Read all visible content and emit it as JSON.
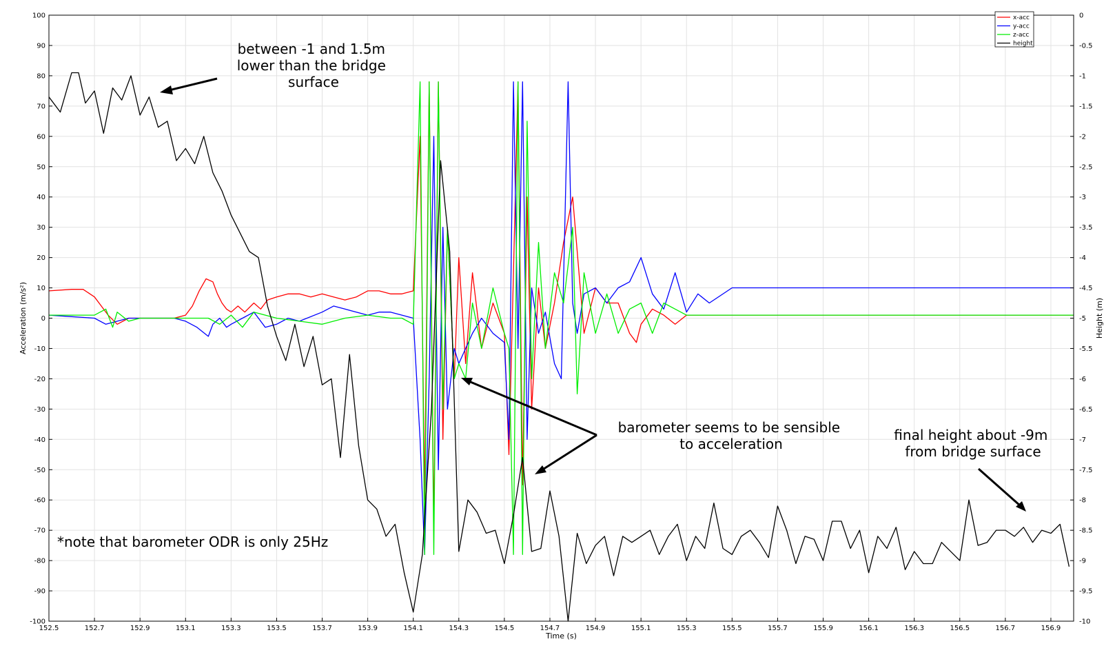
{
  "chart_data": {
    "type": "line",
    "title": "",
    "xlabel": "Time (s)",
    "ylabel_left": "Acceleration (m/s²)",
    "ylabel_right": "Height (m)",
    "xlim": [
      152.5,
      157.0
    ],
    "ylim_left": [
      -100,
      100
    ],
    "ylim_right": [
      -10,
      0
    ],
    "grid": true,
    "legend_position": "top-right",
    "x_ticks": [
      "152.5",
      "152.7",
      "152.9",
      "153.1",
      "153.3",
      "153.5",
      "153.7",
      "153.9",
      "154.1",
      "154.3",
      "154.5",
      "154.7",
      "154.9",
      "155.1",
      "155.3",
      "155.5",
      "155.7",
      "155.9",
      "156.1",
      "156.3",
      "156.5",
      "156.7",
      "156.9"
    ],
    "y_left_ticks": [
      "100",
      "90",
      "80",
      "70",
      "60",
      "50",
      "40",
      "30",
      "20",
      "10",
      "0",
      "-10",
      "-20",
      "-30",
      "-40",
      "-50",
      "-60",
      "-70",
      "-80",
      "-90",
      "-100"
    ],
    "y_right_ticks": [
      "0",
      "-0.5",
      "-1",
      "-1.5",
      "-2",
      "-2.5",
      "-3",
      "-3.5",
      "-4",
      "-4.5",
      "-5",
      "-5.5",
      "-6",
      "-6.5",
      "-7",
      "-7.5",
      "-8",
      "-8.5",
      "-9",
      "-9.5",
      "-10"
    ],
    "series": [
      {
        "name": "x-acc",
        "color": "#ff0000",
        "axis": "left",
        "x": [
          152.5,
          152.6,
          152.65,
          152.7,
          152.73,
          152.76,
          152.8,
          152.85,
          152.9,
          153.0,
          153.05,
          153.1,
          153.13,
          153.16,
          153.19,
          153.22,
          153.24,
          153.26,
          153.28,
          153.3,
          153.33,
          153.36,
          153.4,
          153.43,
          153.46,
          153.5,
          153.55,
          153.6,
          153.65,
          153.7,
          153.75,
          153.8,
          153.85,
          153.9,
          153.95,
          154.0,
          154.05,
          154.1,
          154.13,
          154.15,
          154.17,
          154.19,
          154.21,
          154.23,
          154.25,
          154.28,
          154.3,
          154.33,
          154.36,
          154.4,
          154.45,
          154.5,
          154.52,
          154.54,
          154.56,
          154.58,
          154.6,
          154.62,
          154.65,
          154.68,
          154.72,
          154.76,
          154.8,
          154.85,
          154.9,
          154.95,
          155.0,
          155.05,
          155.08,
          155.1,
          155.15,
          155.2,
          155.25,
          155.3,
          155.4,
          155.5,
          155.7,
          156.0,
          156.5,
          157.0
        ],
        "values": [
          9,
          9.5,
          9.5,
          7,
          4,
          1,
          -2,
          0,
          0,
          0,
          0,
          1,
          4,
          9,
          13,
          12,
          8,
          5,
          3,
          2,
          4,
          2,
          5,
          3,
          6,
          7,
          8,
          8,
          7,
          8,
          7,
          6,
          7,
          9,
          9,
          8,
          8,
          9,
          60,
          -60,
          78,
          -70,
          78,
          -40,
          30,
          -20,
          20,
          -15,
          15,
          -10,
          5,
          -5,
          -45,
          15,
          78,
          -55,
          40,
          -30,
          10,
          -10,
          5,
          25,
          40,
          -5,
          10,
          5,
          5,
          -5,
          -8,
          -2,
          3,
          1,
          -2,
          1,
          1,
          1,
          1,
          1,
          1,
          1
        ]
      },
      {
        "name": "y-acc",
        "color": "#0000ff",
        "axis": "left",
        "x": [
          152.5,
          152.6,
          152.7,
          152.75,
          152.8,
          152.85,
          152.9,
          153.0,
          153.05,
          153.1,
          153.15,
          153.2,
          153.22,
          153.25,
          153.28,
          153.3,
          153.35,
          153.4,
          153.45,
          153.5,
          153.55,
          153.6,
          153.7,
          153.75,
          153.8,
          153.9,
          153.95,
          154.0,
          154.05,
          154.1,
          154.13,
          154.15,
          154.17,
          154.19,
          154.21,
          154.23,
          154.25,
          154.28,
          154.3,
          154.33,
          154.36,
          154.4,
          154.45,
          154.5,
          154.52,
          154.54,
          154.56,
          154.58,
          154.6,
          154.62,
          154.65,
          154.68,
          154.72,
          154.75,
          154.78,
          154.8,
          154.82,
          154.85,
          154.9,
          154.95,
          155.0,
          155.05,
          155.1,
          155.15,
          155.2,
          155.25,
          155.3,
          155.35,
          155.4,
          155.5,
          155.6,
          155.7,
          156.0,
          156.5,
          157.0
        ],
        "values": [
          1,
          0.5,
          0,
          -2,
          -1,
          0,
          0,
          0,
          0,
          -1,
          -3,
          -6,
          -2,
          0,
          -3,
          -2,
          0,
          2,
          -3,
          -2,
          0,
          -1,
          2,
          4,
          3,
          1,
          2,
          2,
          1,
          0,
          -40,
          -78,
          -20,
          60,
          -50,
          30,
          -30,
          -10,
          -15,
          -10,
          -5,
          0,
          -5,
          -8,
          -40,
          78,
          -10,
          78,
          -40,
          10,
          -5,
          2,
          -15,
          -20,
          78,
          5,
          -5,
          8,
          10,
          5,
          10,
          12,
          20,
          8,
          3,
          15,
          2,
          8,
          5,
          10,
          10,
          10,
          10,
          10,
          10
        ]
      },
      {
        "name": "z-acc",
        "color": "#00ee00",
        "axis": "left",
        "x": [
          152.5,
          152.6,
          152.7,
          152.75,
          152.78,
          152.8,
          152.85,
          152.9,
          153.0,
          153.1,
          153.2,
          153.25,
          153.3,
          153.35,
          153.4,
          153.5,
          153.6,
          153.7,
          153.8,
          153.9,
          154.0,
          154.05,
          154.1,
          154.13,
          154.15,
          154.17,
          154.19,
          154.21,
          154.23,
          154.25,
          154.28,
          154.3,
          154.33,
          154.36,
          154.4,
          154.45,
          154.5,
          154.52,
          154.54,
          154.56,
          154.58,
          154.6,
          154.62,
          154.65,
          154.68,
          154.72,
          154.76,
          154.8,
          154.82,
          154.85,
          154.9,
          154.95,
          155.0,
          155.05,
          155.1,
          155.15,
          155.2,
          155.25,
          155.3,
          155.4,
          155.5,
          155.7,
          156.0,
          156.5,
          157.0
        ],
        "values": [
          1,
          1,
          1,
          3,
          -3,
          2,
          -1,
          0,
          0,
          0,
          0,
          -2,
          1,
          -3,
          2,
          0,
          -1,
          -2,
          0,
          1,
          0,
          0,
          -2,
          78,
          -78,
          78,
          -78,
          78,
          -30,
          30,
          -20,
          -15,
          -20,
          5,
          -10,
          10,
          -5,
          -10,
          -78,
          78,
          -78,
          65,
          -20,
          25,
          -10,
          15,
          5,
          30,
          -25,
          15,
          -5,
          8,
          -5,
          3,
          5,
          -5,
          5,
          3,
          1,
          1,
          1,
          1,
          1,
          1,
          1
        ]
      },
      {
        "name": "height",
        "color": "#000000",
        "axis": "right",
        "x": [
          152.5,
          152.55,
          152.6,
          152.63,
          152.66,
          152.7,
          152.74,
          152.78,
          152.82,
          152.86,
          152.9,
          152.94,
          152.98,
          153.02,
          153.06,
          153.1,
          153.14,
          153.18,
          153.22,
          153.26,
          153.3,
          153.34,
          153.38,
          153.42,
          153.46,
          153.5,
          153.54,
          153.58,
          153.62,
          153.66,
          153.7,
          153.74,
          153.78,
          153.82,
          153.86,
          153.9,
          153.94,
          153.98,
          154.02,
          154.06,
          154.1,
          154.14,
          154.18,
          154.22,
          154.26,
          154.3,
          154.34,
          154.38,
          154.42,
          154.46,
          154.5,
          154.54,
          154.58,
          154.62,
          154.66,
          154.7,
          154.74,
          154.78,
          154.82,
          154.86,
          154.9,
          154.94,
          154.98,
          155.02,
          155.06,
          155.1,
          155.14,
          155.18,
          155.22,
          155.26,
          155.3,
          155.34,
          155.38,
          155.42,
          155.46,
          155.5,
          155.54,
          155.58,
          155.62,
          155.66,
          155.7,
          155.74,
          155.78,
          155.82,
          155.86,
          155.9,
          155.94,
          155.98,
          156.02,
          156.06,
          156.1,
          156.14,
          156.18,
          156.22,
          156.26,
          156.3,
          156.34,
          156.38,
          156.42,
          156.46,
          156.5,
          156.54,
          156.58,
          156.62,
          156.66,
          156.7,
          156.74,
          156.78,
          156.82,
          156.86,
          156.9,
          156.94,
          156.98
        ],
        "values": [
          -1.35,
          -1.6,
          -0.95,
          -0.95,
          -1.45,
          -1.25,
          -1.95,
          -1.2,
          -1.4,
          -1.0,
          -1.65,
          -1.35,
          -1.85,
          -1.75,
          -2.4,
          -2.2,
          -2.45,
          -2.0,
          -2.6,
          -2.9,
          -3.3,
          -3.6,
          -3.9,
          -4.0,
          -4.8,
          -5.3,
          -5.7,
          -5.1,
          -5.8,
          -5.3,
          -6.1,
          -6.0,
          -7.3,
          -5.6,
          -7.1,
          -8.0,
          -8.15,
          -8.6,
          -8.4,
          -9.2,
          -9.85,
          -8.9,
          -6.5,
          -2.4,
          -3.9,
          -8.85,
          -8.0,
          -8.2,
          -8.55,
          -8.5,
          -9.05,
          -8.25,
          -7.3,
          -8.85,
          -8.8,
          -7.85,
          -8.6,
          -10.2,
          -8.55,
          -9.05,
          -8.75,
          -8.6,
          -9.25,
          -8.6,
          -8.7,
          -8.6,
          -8.5,
          -8.9,
          -8.6,
          -8.4,
          -9.0,
          -8.6,
          -8.8,
          -8.05,
          -8.8,
          -8.9,
          -8.6,
          -8.5,
          -8.7,
          -8.95,
          -8.1,
          -8.5,
          -9.05,
          -8.6,
          -8.65,
          -9.0,
          -8.35,
          -8.35,
          -8.8,
          -8.5,
          -9.2,
          -8.6,
          -8.8,
          -8.45,
          -9.15,
          -8.85,
          -9.05,
          -9.05,
          -8.7,
          -8.85,
          -9.0,
          -8.0,
          -8.75,
          -8.7,
          -8.5,
          -8.5,
          -8.6,
          -8.45,
          -8.7,
          -8.5,
          -8.55,
          -8.4,
          -9.1
        ]
      }
    ],
    "annotations": [
      {
        "id": "bridge-note",
        "lines": [
          "between -1 and 1.5m",
          "lower than the bridge",
          "surface"
        ]
      },
      {
        "id": "baro-note",
        "lines": [
          "barometer seems to be sensible",
          "to acceleration"
        ]
      },
      {
        "id": "final-note",
        "lines": [
          "final height about -9m",
          "from bridge surface"
        ]
      },
      {
        "id": "odr-note",
        "lines": [
          "*note that barometer ODR is only 25Hz"
        ]
      }
    ]
  }
}
